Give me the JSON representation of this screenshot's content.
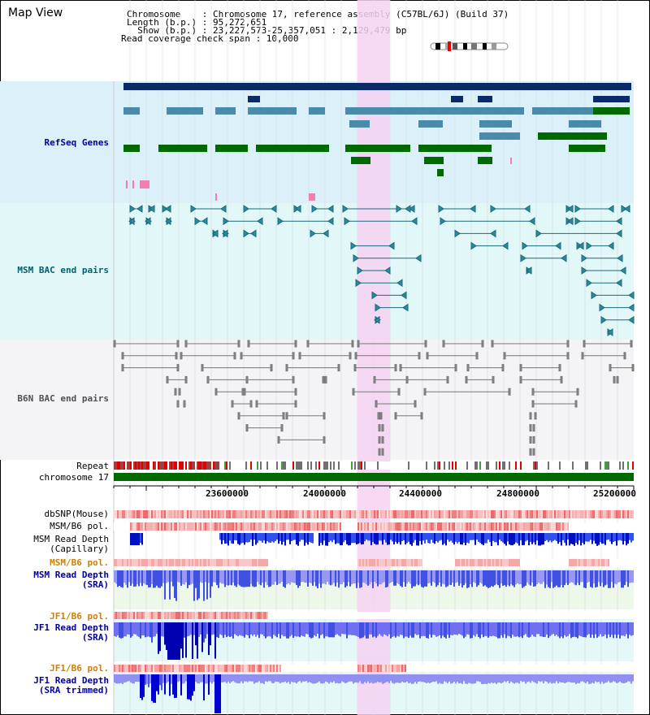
{
  "title": "Map View",
  "info": {
    "line1": "Chromosome    : Chromosome 17, reference assembly (C57BL/6J) (Build 37)",
    "line2": "Length (b.p.) : 95,272,651",
    "line3": "  Show (b.p.) : 23,227,573-25,357,051 : 2,129,479 bp",
    "line4": "Read coverage check span : 10,000"
  },
  "tracks": {
    "refseq": "RefSeq Genes",
    "msm_bac": "MSM BAC end pairs",
    "b6n_bac": "B6N BAC end pairs",
    "repeat": "Repeat",
    "chromosome": "chromosome 17",
    "dbsnp": "dbSNP(Mouse)",
    "msm_b6_pol_1": "MSM/B6 pol.",
    "msm_depth_cap_1": "MSM Read Depth",
    "msm_depth_cap_2": "(Capillary)",
    "msm_b6_pol_2": "MSM/B6 pol.",
    "msm_depth_sra_1": "MSM Read Depth",
    "msm_depth_sra_2": "(SRA)",
    "jf1_b6_pol_1": "JF1/B6 pol.",
    "jf1_depth_sra_1": "JF1 Read Depth",
    "jf1_depth_sra_2": "(SRA)",
    "jf1_b6_pol_2": "JF1/B6 pol.",
    "jf1_depth_trim_1": "JF1 Read Depth",
    "jf1_depth_trim_2": "(SRA trimmed)"
  },
  "axis": {
    "ticks": [
      "23600000",
      "24000000",
      "24400000",
      "24800000",
      "25200000"
    ]
  },
  "colors": {
    "refseq_label": "#0000a0",
    "msm_bac_label": "#006070",
    "b6n_bac_label": "#505050",
    "pol_orange": "#d08000",
    "depth_blue": "#0000a0",
    "highlight": "#f6d2f2"
  }
}
